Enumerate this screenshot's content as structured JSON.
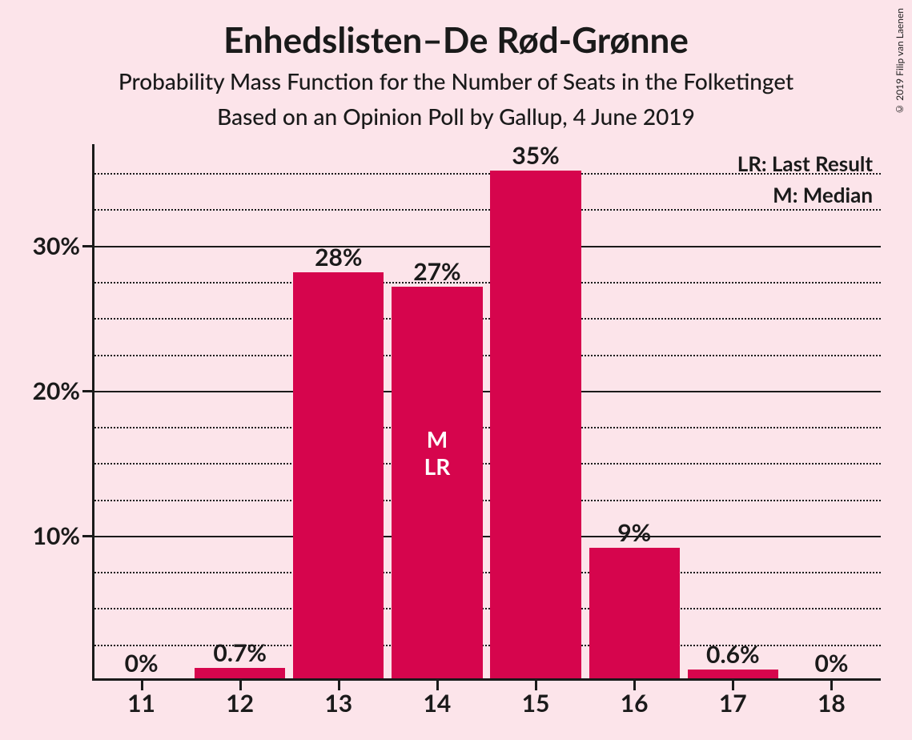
{
  "chart": {
    "type": "bar",
    "title": "Enhedslisten–De Rød-Grønne",
    "subtitle1": "Probability Mass Function for the Number of Seats in the Folketinget",
    "subtitle2": "Based on an Opinion Poll by Gallup, 4 June 2019",
    "copyright": "© 2019 Filip van Laenen",
    "background_color": "#fce4ea",
    "bar_color": "#d6054d",
    "text_color": "#1a1a1a",
    "in_bar_text_color": "#ffffff",
    "ylim": [
      0,
      37
    ],
    "y_major_ticks": [
      10,
      20,
      30
    ],
    "y_minor_step": 2.5,
    "y_tick_labels": [
      "10%",
      "20%",
      "30%"
    ],
    "categories": [
      "11",
      "12",
      "13",
      "14",
      "15",
      "16",
      "17",
      "18"
    ],
    "values": [
      0,
      0.7,
      28,
      27,
      35,
      9,
      0.6,
      0
    ],
    "value_labels": [
      "0%",
      "0.7%",
      "28%",
      "27%",
      "35%",
      "9%",
      "0.6%",
      "0%"
    ],
    "bar_width_ratio": 0.92,
    "median_lr_index": 3,
    "median_label": "M",
    "lr_label": "LR",
    "legend": {
      "lr": "LR: Last Result",
      "m": "M: Median"
    },
    "title_fontsize": 44,
    "subtitle_fontsize": 28,
    "axis_label_fontsize": 30,
    "legend_fontsize": 26
  }
}
